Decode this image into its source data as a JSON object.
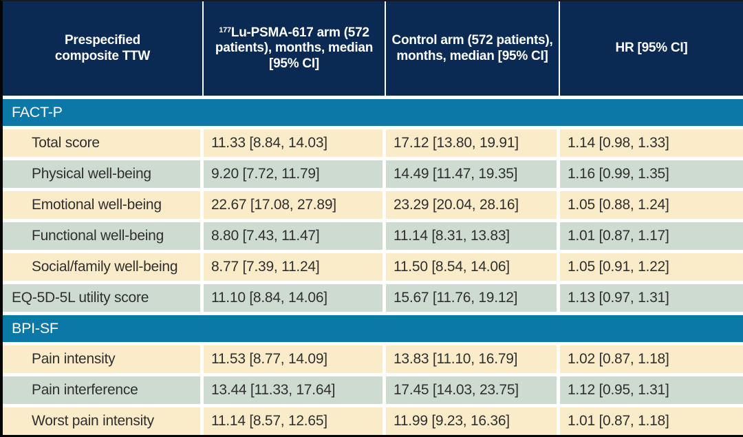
{
  "colors": {
    "header_bg": "#0a2a54",
    "section_bg": "#0b78a8",
    "row_cream": "#faebc9",
    "row_green": "#cedbd1",
    "header_text": "#ffffff",
    "body_text": "#2f2f2f",
    "divider": "#ffffff",
    "outer_border": "#050505"
  },
  "table": {
    "columns": [
      {
        "label": "Prespecified composite TTW"
      },
      {
        "sup": "177",
        "label": "Lu-PSMA-617 arm (572 patients), months, median [95% CI]"
      },
      {
        "label": "Control arm (572 patients), months, median [95% CI]"
      },
      {
        "label": "HR [95% CI]"
      }
    ],
    "sections": [
      {
        "title": "FACT-P",
        "rows": [
          {
            "label": "Total score",
            "indent": true,
            "cells": [
              "11.33 [8.84, 14.03]",
              "17.12 [13.80, 19.91]",
              "1.14 [0.98, 1.33]"
            ]
          },
          {
            "label": "Physical well-being",
            "indent": true,
            "cells": [
              "9.20 [7.72, 11.79]",
              "14.49 [11.47, 19.35]",
              "1.16 [0.99, 1.35]"
            ]
          },
          {
            "label": "Emotional well-being",
            "indent": true,
            "cells": [
              "22.67 [17.08, 27.89]",
              "23.29 [20.04, 28.16]",
              "1.05 [0.88, 1.24]"
            ]
          },
          {
            "label": "Functional well-being",
            "indent": true,
            "cells": [
              "8.80 [7.43, 11.47]",
              "11.14 [8.31, 13.83]",
              "1.01 [0.87, 1.17]"
            ]
          },
          {
            "label": "Social/family well-being",
            "indent": true,
            "cells": [
              "8.77 [7.39, 11.24]",
              "11.50 [8.54, 14.06]",
              "1.05 [0.91, 1.22]"
            ]
          },
          {
            "label": "EQ-5D-5L utility score",
            "indent": false,
            "cells": [
              "11.10 [8.84, 14.06]",
              "15.67 [11.76, 19.12]",
              "1.13 [0.97, 1.31]"
            ]
          }
        ]
      },
      {
        "title": "BPI-SF",
        "rows": [
          {
            "label": "Pain intensity",
            "indent": true,
            "cells": [
              "11.53 [8.77, 14.09]",
              "13.83 [11.10, 16.79]",
              "1.02 [0.87, 1.18]"
            ]
          },
          {
            "label": "Pain interference",
            "indent": true,
            "cells": [
              "13.44 [11.33, 17.64]",
              "17.45 [14.03, 23.75]",
              "1.12 [0.95, 1.31]"
            ]
          },
          {
            "label": "Worst pain intensity",
            "indent": true,
            "cells": [
              "11.14 [8.57, 12.65]",
              "11.99 [9.23, 16.36]",
              "1.01 [0.87, 1.18]"
            ]
          }
        ]
      }
    ]
  },
  "chart_data": {
    "type": "table",
    "columns": [
      "Prespecified composite TTW",
      "177Lu-PSMA-617 arm (572 patients), months, median [95% CI]",
      "Control arm (572 patients), months, median [95% CI]",
      "HR [95% CI]"
    ],
    "rows": [
      [
        "FACT-P",
        "",
        "",
        ""
      ],
      [
        "Total score",
        "11.33 [8.84, 14.03]",
        "17.12 [13.80, 19.91]",
        "1.14 [0.98, 1.33]"
      ],
      [
        "Physical well-being",
        "9.20 [7.72, 11.79]",
        "14.49 [11.47, 19.35]",
        "1.16 [0.99, 1.35]"
      ],
      [
        "Emotional well-being",
        "22.67 [17.08, 27.89]",
        "23.29 [20.04, 28.16]",
        "1.05 [0.88, 1.24]"
      ],
      [
        "Functional well-being",
        "8.80 [7.43, 11.47]",
        "11.14 [8.31, 13.83]",
        "1.01 [0.87, 1.17]"
      ],
      [
        "Social/family well-being",
        "8.77 [7.39, 11.24]",
        "11.50 [8.54, 14.06]",
        "1.05 [0.91, 1.22]"
      ],
      [
        "EQ-5D-5L utility score",
        "11.10 [8.84, 14.06]",
        "15.67 [11.76, 19.12]",
        "1.13 [0.97, 1.31]"
      ],
      [
        "BPI-SF",
        "",
        "",
        ""
      ],
      [
        "Pain intensity",
        "11.53 [8.77, 14.09]",
        "13.83 [11.10, 16.79]",
        "1.02 [0.87, 1.18]"
      ],
      [
        "Pain interference",
        "13.44 [11.33, 17.64]",
        "17.45 [14.03, 23.75]",
        "1.12 [0.95, 1.31]"
      ],
      [
        "Worst pain intensity",
        "11.14 [8.57, 12.65]",
        "11.99 [9.23, 16.36]",
        "1.01 [0.87, 1.18]"
      ]
    ]
  }
}
